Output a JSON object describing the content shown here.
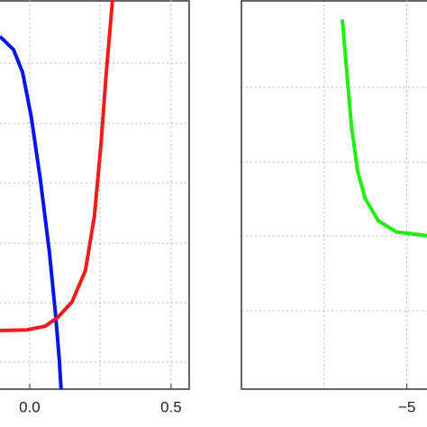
{
  "chart_data": [
    {
      "type": "line",
      "xlim": [
        -0.105,
        0.564
      ],
      "ylim": [
        -0.45,
        6.05
      ],
      "xticks": [
        {
          "value": 0,
          "label": "0.0"
        },
        {
          "value": 0.5,
          "label": "0.5"
        }
      ],
      "grid": true,
      "series": [
        {
          "color": "#0a14e6",
          "x": [
            -0.105,
            -0.057,
            -0.025,
            0.006,
            0.038,
            0.07,
            0.092,
            0.105,
            0.111
          ],
          "values": [
            5.44,
            5.22,
            4.84,
            4.09,
            3.04,
            1.83,
            0.78,
            0.03,
            -0.45
          ]
        },
        {
          "color": "#ee1c1c",
          "x": [
            -0.105,
            -0.01,
            0.054,
            0.1,
            0.15,
            0.197,
            0.229,
            0.252,
            0.271,
            0.293
          ],
          "values": [
            0.53,
            0.54,
            0.6,
            0.75,
            1.01,
            1.53,
            2.44,
            3.64,
            4.84,
            6.05
          ]
        }
      ]
    },
    {
      "type": "line",
      "xlim": [
        -10.1,
        -4.38
      ],
      "ylim": [
        0,
        5.2
      ],
      "xticks": [
        {
          "value": -5,
          "label": "−5"
        }
      ],
      "grid": true,
      "series": [
        {
          "color": "#22ee11",
          "x": [
            -6.99,
            -6.85,
            -6.71,
            -6.52,
            -6.29,
            -5.88,
            -5.32,
            -4.38
          ],
          "values": [
            4.94,
            4.24,
            3.52,
            2.92,
            2.55,
            2.25,
            2.1,
            2.05
          ]
        }
      ]
    }
  ]
}
